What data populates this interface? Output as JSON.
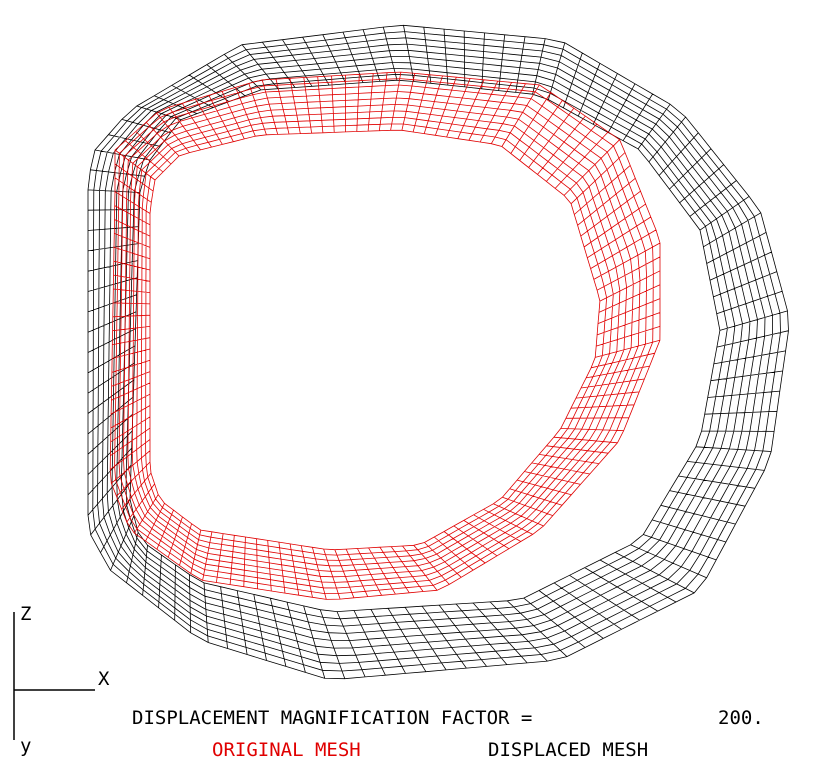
{
  "axes": {
    "z": "Z",
    "x": "X",
    "y": "y"
  },
  "caption": {
    "label": "DISPLACEMENT MAGNIFICATION FACTOR =",
    "factor": "200."
  },
  "legend": {
    "original": "ORIGINAL MESH",
    "displaced": "DISPLACED MESH"
  }
}
